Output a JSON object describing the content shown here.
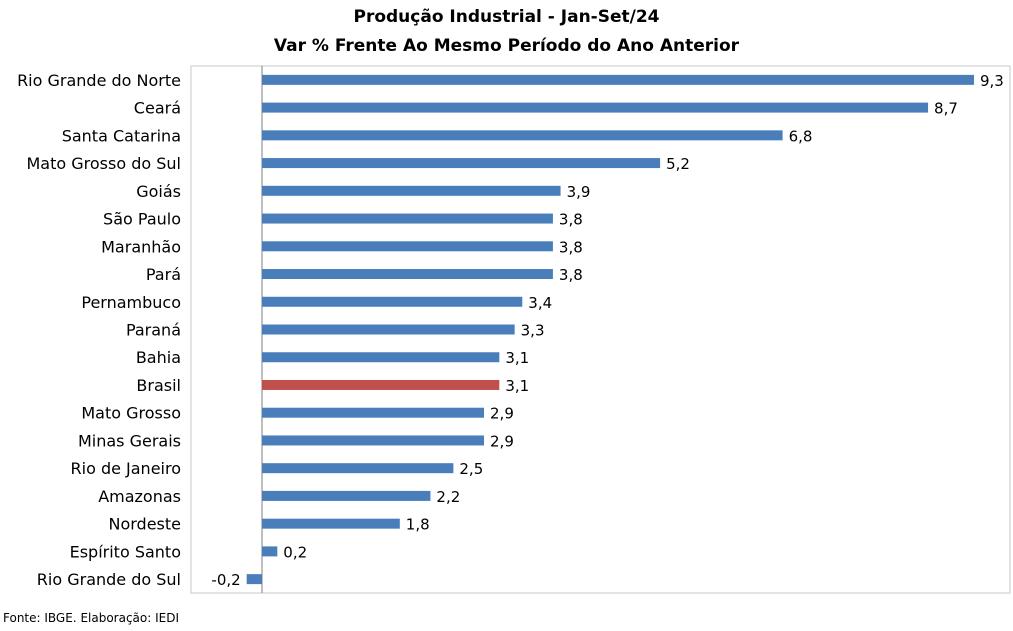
{
  "chart_data": {
    "type": "bar",
    "orientation": "horizontal",
    "title": "Produção Industrial - Jan-Set/24",
    "subtitle": "Var % Frente Ao Mesmo Período do Ano Anterior",
    "categories": [
      "Rio Grande do Norte",
      "Ceará",
      "Santa Catarina",
      "Mato Grosso do Sul",
      "Goiás",
      "São Paulo",
      "Maranhão",
      "Pará",
      "Pernambuco",
      "Paraná",
      "Bahia",
      "Brasil",
      "Mato Grosso",
      "Minas Gerais",
      "Rio de Janeiro",
      "Amazonas",
      "Nordeste",
      "Espírito Santo",
      "Rio Grande do Sul"
    ],
    "values": [
      9.3,
      8.7,
      6.8,
      5.2,
      3.9,
      3.8,
      3.8,
      3.8,
      3.4,
      3.3,
      3.1,
      3.1,
      2.9,
      2.9,
      2.5,
      2.2,
      1.8,
      0.2,
      -0.2
    ],
    "value_labels": [
      "9,3",
      "8,7",
      "6,8",
      "5,2",
      "3,9",
      "3,8",
      "3,8",
      "3,8",
      "3,4",
      "3,3",
      "3,1",
      "3,1",
      "2,9",
      "2,9",
      "2,5",
      "2,2",
      "1,8",
      "0,2",
      "-0,2"
    ],
    "highlight_category": "Brasil",
    "xlim": [
      -0.2,
      9.3
    ],
    "xlabel": "",
    "ylabel": "",
    "grid": false,
    "legend": "none",
    "colors": {
      "bar": "#4a7ebb",
      "highlight": "#c0504d",
      "axis": "#7f7f7f"
    }
  },
  "footer": {
    "source": "Fonte: IBGE. Elaboração: IEDI"
  }
}
